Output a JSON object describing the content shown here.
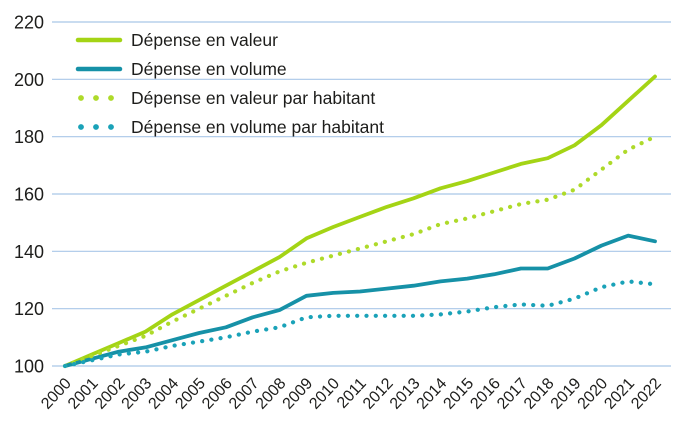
{
  "chart_data": {
    "type": "line",
    "title": "",
    "xlabel": "",
    "ylabel": "",
    "x": [
      2000,
      2001,
      2002,
      2003,
      2004,
      2005,
      2006,
      2007,
      2008,
      2009,
      2010,
      2011,
      2012,
      2013,
      2014,
      2015,
      2016,
      2017,
      2018,
      2019,
      2020,
      2021,
      2022
    ],
    "ylim": [
      100,
      220
    ],
    "yticks": [
      100,
      120,
      140,
      160,
      180,
      200,
      220
    ],
    "grid": "horizontal-only",
    "gridline_color": "#a9c7e8",
    "text_color": "#1d1d1b",
    "legend_position": "top-left-inside",
    "series": [
      {
        "name": "Dépense en valeur",
        "style": "solid",
        "color": "#a4d415",
        "values": [
          100,
          104,
          108,
          112,
          118,
          123,
          128,
          133,
          138,
          144.5,
          148.5,
          152,
          155.5,
          158.5,
          162,
          164.5,
          167.5,
          170.5,
          172.5,
          177,
          184,
          192.5,
          201
        ]
      },
      {
        "name": "Dépense en volume",
        "style": "solid",
        "color": "#1691a7",
        "values": [
          100,
          102.5,
          105,
          106.5,
          109,
          111.5,
          113.5,
          117,
          119.5,
          124.5,
          125.5,
          126,
          127,
          128,
          129.5,
          130.5,
          132,
          134,
          134,
          137.5,
          142,
          145.5,
          143.5
        ]
      },
      {
        "name": "Dépense en valeur par habitant",
        "style": "dotted",
        "color": "#aeda2a",
        "values": [
          100,
          103.5,
          107,
          110.5,
          115.5,
          120,
          124.5,
          129,
          133,
          136,
          138.5,
          141,
          143.5,
          146,
          149.5,
          151.5,
          154,
          156.5,
          158,
          161.5,
          168.5,
          175.5,
          180
        ]
      },
      {
        "name": "Dépense en volume par habitant",
        "style": "dotted",
        "color": "#1aa2b8",
        "values": [
          100,
          102,
          104,
          105,
          107,
          108.5,
          110,
          112,
          113.5,
          117,
          117.5,
          117.5,
          117.5,
          117.5,
          118,
          119,
          120.5,
          121.5,
          121,
          123.5,
          127.5,
          129.5,
          128.5
        ]
      }
    ]
  }
}
